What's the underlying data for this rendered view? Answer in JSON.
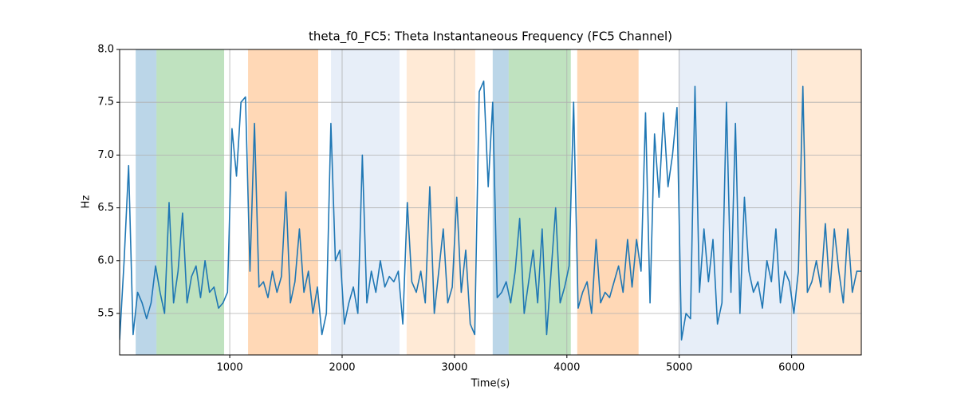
{
  "chart_data": {
    "type": "line",
    "title": "theta_f0_FC5: Theta Instantaneous Frequency (FC5 Channel)",
    "x_label": "Time(s)",
    "y_label": "Hz",
    "xlim": [
      20,
      6620
    ],
    "ylim": [
      5.107,
      8.0
    ],
    "xticks": [
      1000,
      2000,
      3000,
      4000,
      5000,
      6000
    ],
    "yticks": [
      5.5,
      {
        "value": 6,
        "label": "6.0"
      },
      6.5,
      {
        "value": 7,
        "label": "7.0"
      },
      7.5,
      {
        "value": 8,
        "label": "8.0"
      }
    ],
    "grid": true,
    "spans": [
      {
        "x0": 163,
        "x1": 348,
        "color": "#1f77b4",
        "opacity": 0.3
      },
      {
        "x0": 348,
        "x1": 950,
        "color": "#2ca02c",
        "opacity": 0.3
      },
      {
        "x0": 1163,
        "x1": 1787,
        "color": "#ff7f0e",
        "opacity": 0.3
      },
      {
        "x0": 1901,
        "x1": 2511,
        "color": "#aec7e8",
        "opacity": 0.3
      },
      {
        "x0": 2574,
        "x1": 3184,
        "color": "#ffbb78",
        "opacity": 0.3
      },
      {
        "x0": 3340,
        "x1": 3482,
        "color": "#1f77b4",
        "opacity": 0.3
      },
      {
        "x0": 3482,
        "x1": 4035,
        "color": "#2ca02c",
        "opacity": 0.3
      },
      {
        "x0": 4092,
        "x1": 4638,
        "color": "#ff7f0e",
        "opacity": 0.3
      },
      {
        "x0": 4993,
        "x1": 6050,
        "color": "#aec7e8",
        "opacity": 0.3
      },
      {
        "x0": 6050,
        "x1": 6617,
        "color": "#ffbb78",
        "opacity": 0.3
      }
    ],
    "x": [
      20,
      60,
      100,
      140,
      180,
      220,
      260,
      300,
      340,
      380,
      420,
      460,
      500,
      540,
      580,
      620,
      660,
      700,
      740,
      780,
      820,
      860,
      900,
      940,
      980,
      1020,
      1060,
      1100,
      1140,
      1180,
      1220,
      1260,
      1300,
      1340,
      1380,
      1420,
      1460,
      1500,
      1540,
      1580,
      1620,
      1660,
      1700,
      1740,
      1780,
      1820,
      1860,
      1900,
      1940,
      1980,
      2020,
      2060,
      2100,
      2140,
      2180,
      2220,
      2260,
      2300,
      2340,
      2380,
      2420,
      2460,
      2500,
      2540,
      2580,
      2620,
      2660,
      2700,
      2740,
      2780,
      2820,
      2860,
      2900,
      2940,
      2980,
      3020,
      3060,
      3100,
      3140,
      3180,
      3220,
      3260,
      3300,
      3340,
      3380,
      3420,
      3460,
      3500,
      3540,
      3580,
      3620,
      3660,
      3700,
      3740,
      3780,
      3820,
      3860,
      3900,
      3940,
      3980,
      4020,
      4060,
      4100,
      4140,
      4180,
      4220,
      4260,
      4300,
      4340,
      4380,
      4420,
      4460,
      4500,
      4540,
      4580,
      4620,
      4660,
      4700,
      4740,
      4780,
      4820,
      4860,
      4900,
      4940,
      4980,
      5020,
      5060,
      5100,
      5140,
      5180,
      5220,
      5260,
      5300,
      5340,
      5380,
      5420,
      5460,
      5500,
      5540,
      5580,
      5620,
      5660,
      5700,
      5740,
      5780,
      5820,
      5860,
      5900,
      5940,
      5980,
      6020,
      6060,
      6100,
      6140,
      6180,
      6220,
      6260,
      6300,
      6340,
      6380,
      6420,
      6460,
      6500,
      6540,
      6580,
      6620
    ],
    "series": [
      {
        "color": "#1f77b4",
        "values": [
          5.25,
          6.0,
          6.9,
          5.3,
          5.7,
          5.6,
          5.45,
          5.6,
          5.95,
          5.7,
          5.5,
          6.55,
          5.6,
          5.9,
          6.45,
          5.6,
          5.85,
          5.95,
          5.65,
          6.0,
          5.7,
          5.75,
          5.55,
          5.6,
          5.7,
          7.25,
          6.8,
          7.5,
          7.55,
          5.9,
          7.3,
          5.75,
          5.8,
          5.65,
          5.9,
          5.7,
          5.85,
          6.65,
          5.6,
          5.8,
          6.3,
          5.7,
          5.9,
          5.5,
          5.75,
          5.3,
          5.5,
          7.3,
          6.0,
          6.1,
          5.4,
          5.6,
          5.75,
          5.5,
          7.0,
          5.6,
          5.9,
          5.7,
          6.0,
          5.75,
          5.85,
          5.8,
          5.9,
          5.4,
          6.55,
          5.8,
          5.7,
          5.9,
          5.6,
          6.7,
          5.5,
          5.9,
          6.3,
          5.6,
          5.75,
          6.6,
          5.7,
          6.1,
          5.4,
          5.3,
          7.6,
          7.7,
          6.7,
          7.5,
          5.65,
          5.7,
          5.8,
          5.6,
          5.9,
          6.4,
          5.5,
          5.8,
          6.1,
          5.6,
          6.3,
          5.3,
          5.9,
          6.5,
          5.6,
          5.75,
          5.95,
          7.5,
          5.55,
          5.7,
          5.8,
          5.5,
          6.2,
          5.6,
          5.7,
          5.65,
          5.8,
          5.95,
          5.7,
          6.2,
          5.75,
          6.2,
          5.9,
          7.4,
          5.6,
          7.2,
          6.6,
          7.4,
          6.7,
          7.0,
          7.45,
          5.25,
          5.5,
          5.45,
          7.65,
          5.7,
          6.3,
          5.8,
          6.2,
          5.4,
          5.6,
          7.5,
          5.7,
          7.3,
          5.5,
          6.6,
          5.9,
          5.7,
          5.8,
          5.55,
          6.0,
          5.8,
          6.3,
          5.6,
          5.9,
          5.8,
          5.5,
          5.9,
          7.65,
          5.7,
          5.8,
          6.0,
          5.75,
          6.35,
          5.7,
          6.3,
          5.9,
          5.6,
          6.3,
          5.7,
          5.9,
          5.9
        ]
      }
    ]
  }
}
